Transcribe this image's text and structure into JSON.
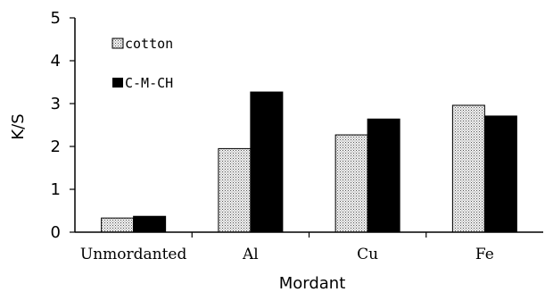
{
  "chart_data": {
    "type": "bar",
    "categories": [
      "Unmordanted",
      "Al",
      "Cu",
      "Fe"
    ],
    "series": [
      {
        "name": "cotton",
        "values": [
          0.33,
          1.95,
          2.27,
          2.96
        ],
        "pattern": "dotted"
      },
      {
        "name": "C-M-CH",
        "values": [
          0.37,
          3.27,
          2.64,
          2.71
        ],
        "color": "#000000"
      }
    ],
    "xlabel": "Mordant",
    "ylabel": "K/S",
    "ylim": [
      0,
      5
    ],
    "yticks": [
      "0",
      "1",
      "2",
      "3",
      "4",
      "5"
    ],
    "grid": false,
    "legend": "top-left"
  }
}
